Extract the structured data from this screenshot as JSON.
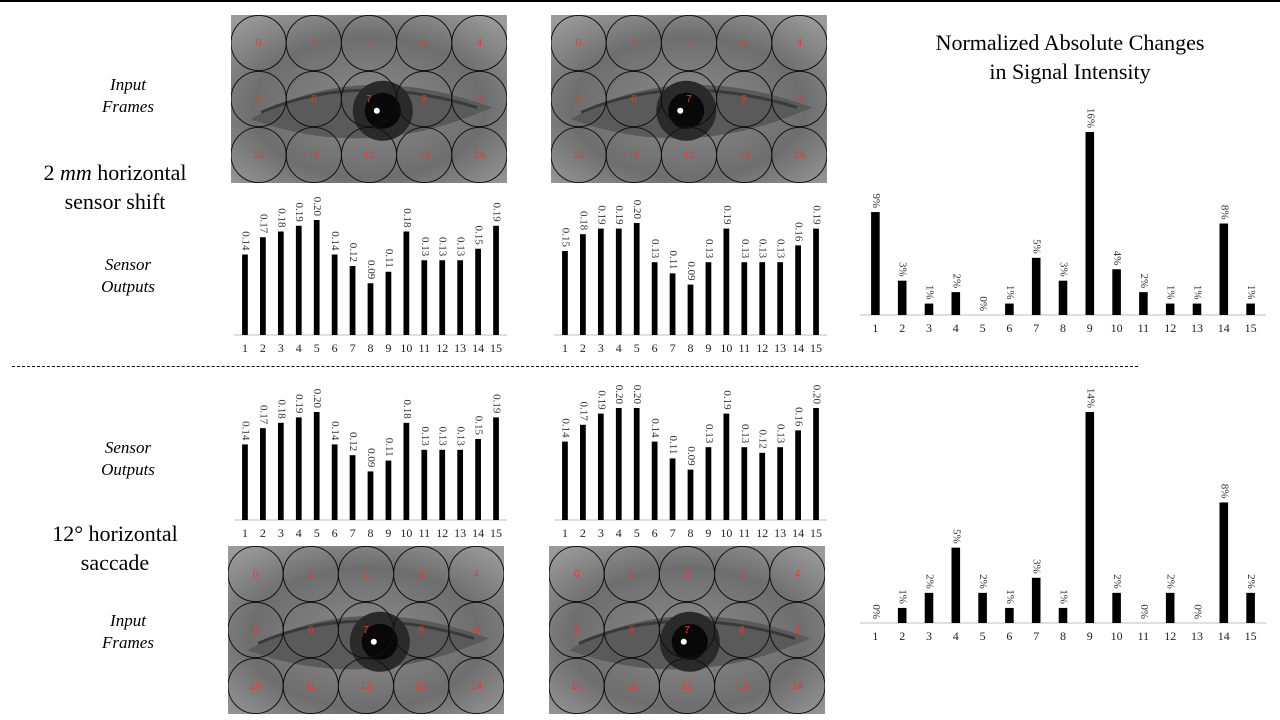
{
  "top_label_input": "Input\nFrames",
  "top_label_sensor": "Sensor\nOutputs",
  "bottom_label_sensor": "Sensor\nOutputs",
  "bottom_label_input": "Input\nFrames",
  "row1_caption": {
    "prefix": "2 ",
    "unit": "mm",
    "suffix": " horizontal",
    "line2": "sensor shift"
  },
  "row2_caption": {
    "line1": "12° horizontal",
    "line2": "saccade"
  },
  "right_title": "Normalized Absolute Changes\nin Signal Intensity",
  "eye_cells": [
    "0",
    "1",
    "2",
    "3",
    "4",
    "5",
    "6",
    "7",
    "8",
    "9",
    "10",
    "11",
    "12",
    "13",
    "14"
  ],
  "colors": {
    "bar": "#000000",
    "cell_label": "#e8382f",
    "axis": "#bfbfbf"
  },
  "chart_data": [
    {
      "type": "bar",
      "id": "sensor-shift-frame-1",
      "title": "",
      "categories": [
        "1",
        "2",
        "3",
        "4",
        "5",
        "6",
        "7",
        "8",
        "9",
        "10",
        "11",
        "12",
        "13",
        "14",
        "15"
      ],
      "values": [
        0.14,
        0.17,
        0.18,
        0.19,
        0.2,
        0.14,
        0.12,
        0.09,
        0.11,
        0.18,
        0.13,
        0.13,
        0.13,
        0.15,
        0.19
      ],
      "labels": [
        "0.14",
        "0.17",
        "0.18",
        "0.19",
        "0.20",
        "0.14",
        "0.12",
        "0.09",
        "0.11",
        "0.18",
        "0.13",
        "0.13",
        "0.13",
        "0.15",
        "0.19"
      ],
      "ylim": [
        0,
        0.2
      ]
    },
    {
      "type": "bar",
      "id": "sensor-shift-frame-2",
      "title": "",
      "categories": [
        "1",
        "2",
        "3",
        "4",
        "5",
        "6",
        "7",
        "8",
        "9",
        "10",
        "11",
        "12",
        "13",
        "14",
        "15"
      ],
      "values": [
        0.15,
        0.18,
        0.19,
        0.19,
        0.2,
        0.13,
        0.11,
        0.09,
        0.13,
        0.19,
        0.13,
        0.13,
        0.13,
        0.16,
        0.19
      ],
      "labels": [
        "0.15",
        "0.18",
        "0.19",
        "0.19",
        "0.20",
        "0.13",
        "0.11",
        "0.09",
        "0.13",
        "0.19",
        "0.13",
        "0.13",
        "0.13",
        "0.16",
        "0.19"
      ],
      "ylim": [
        0,
        0.2
      ]
    },
    {
      "type": "bar",
      "id": "sensor-shift-change",
      "title": "Normalized Absolute Changes in Signal Intensity",
      "categories": [
        "1",
        "2",
        "3",
        "4",
        "5",
        "6",
        "7",
        "8",
        "9",
        "10",
        "11",
        "12",
        "13",
        "14",
        "15"
      ],
      "values": [
        9,
        3,
        1,
        2,
        0,
        1,
        5,
        3,
        16,
        4,
        2,
        1,
        1,
        8,
        1
      ],
      "labels": [
        "9%",
        "3%",
        "1%",
        "2%",
        "0%",
        "1%",
        "5%",
        "3%",
        "16%",
        "4%",
        "2%",
        "1%",
        "1%",
        "8%",
        "1%"
      ],
      "ylim": [
        0,
        16
      ]
    },
    {
      "type": "bar",
      "id": "saccade-frame-1",
      "title": "",
      "categories": [
        "1",
        "2",
        "3",
        "4",
        "5",
        "6",
        "7",
        "8",
        "9",
        "10",
        "11",
        "12",
        "13",
        "14",
        "15"
      ],
      "values": [
        0.14,
        0.17,
        0.18,
        0.19,
        0.2,
        0.14,
        0.12,
        0.09,
        0.11,
        0.18,
        0.13,
        0.13,
        0.13,
        0.15,
        0.19
      ],
      "labels": [
        "0.14",
        "0.17",
        "0.18",
        "0.19",
        "0.20",
        "0.14",
        "0.12",
        "0.09",
        "0.11",
        "0.18",
        "0.13",
        "0.13",
        "0.13",
        "0.15",
        "0.19"
      ],
      "ylim": [
        0,
        0.2
      ]
    },
    {
      "type": "bar",
      "id": "saccade-frame-2",
      "title": "",
      "categories": [
        "1",
        "2",
        "3",
        "4",
        "5",
        "6",
        "7",
        "8",
        "9",
        "10",
        "11",
        "12",
        "13",
        "14",
        "15"
      ],
      "values": [
        0.14,
        0.17,
        0.19,
        0.2,
        0.2,
        0.14,
        0.11,
        0.09,
        0.13,
        0.19,
        0.13,
        0.12,
        0.13,
        0.16,
        0.2
      ],
      "labels": [
        "0.14",
        "0.17",
        "0.19",
        "0.20",
        "0.20",
        "0.14",
        "0.11",
        "0.09",
        "0.13",
        "0.19",
        "0.13",
        "0.12",
        "0.13",
        "0.16",
        "0.20"
      ],
      "ylim": [
        0,
        0.2
      ]
    },
    {
      "type": "bar",
      "id": "saccade-change",
      "title": "",
      "categories": [
        "1",
        "2",
        "3",
        "4",
        "5",
        "6",
        "7",
        "8",
        "9",
        "10",
        "11",
        "12",
        "13",
        "14",
        "15"
      ],
      "values": [
        0,
        1,
        2,
        5,
        2,
        1,
        3,
        1,
        14,
        2,
        0,
        2,
        0,
        8,
        2
      ],
      "labels": [
        "0%",
        "1%",
        "2%",
        "5%",
        "2%",
        "1%",
        "3%",
        "1%",
        "14%",
        "2%",
        "0%",
        "2%",
        "0%",
        "8%",
        "2%"
      ],
      "ylim": [
        0,
        14
      ]
    }
  ]
}
